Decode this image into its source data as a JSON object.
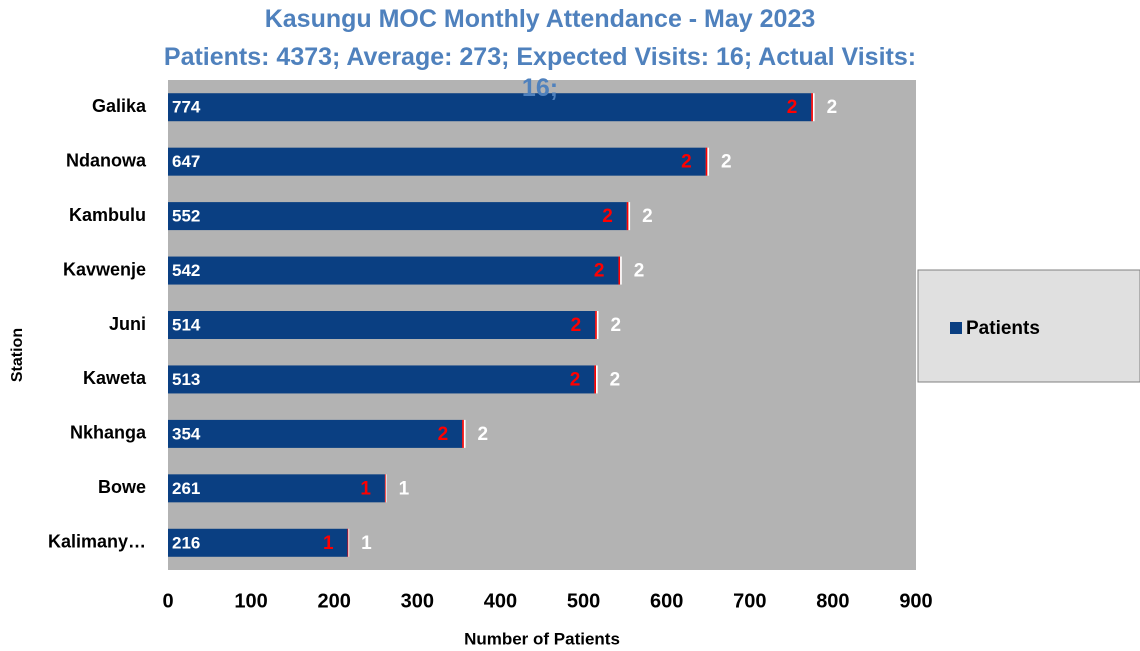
{
  "chart_data": {
    "type": "stacked-bar-horizontal",
    "title": "Kasungu MOC  Monthly Attendance  - May 2023",
    "subtitle": "Patients: 4373; Average: 273;  Expected Visits: 16; Actual Visits: 16;",
    "ylabel": "Station",
    "xlabel": "Number of Patients",
    "categories": [
      "Galika",
      "Ndanowa",
      "Kambulu",
      "Kavwenje",
      "Juni",
      "Kaweta",
      "Nkhanga",
      "Bowe",
      "Kalimany…"
    ],
    "series": [
      {
        "name": "Patients",
        "color": "#0a3f82",
        "label_color": "#ffffff",
        "values": [
          774,
          647,
          552,
          542,
          514,
          513,
          354,
          261,
          216
        ]
      },
      {
        "color": "#ff0000",
        "label_color": "#ff0000",
        "values": [
          2,
          2,
          2,
          2,
          2,
          2,
          2,
          1,
          1
        ]
      },
      {
        "color": "#ffffff",
        "label_color": "#ffffff",
        "values": [
          2,
          2,
          2,
          2,
          2,
          2,
          2,
          1,
          1
        ]
      }
    ],
    "xlim": [
      0,
      900
    ],
    "xticks": [
      0,
      100,
      200,
      300,
      400,
      500,
      600,
      700,
      800,
      900
    ],
    "grid": false,
    "legend": "right",
    "plot_background": "#b3b3b3"
  }
}
